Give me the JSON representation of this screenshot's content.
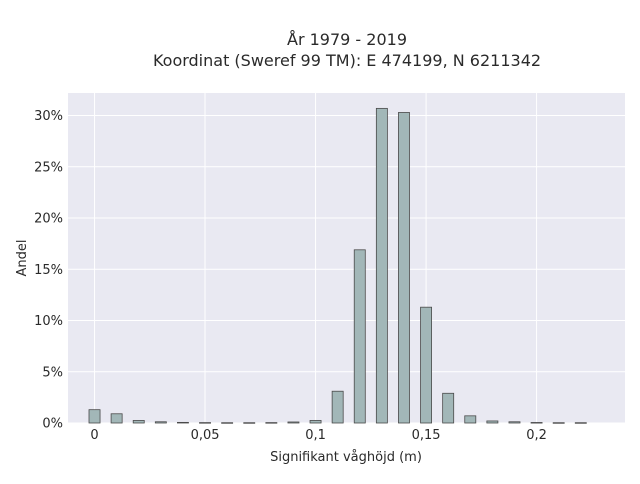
{
  "chart_data": {
    "type": "bar",
    "title_line1": "År 1979 - 2019",
    "title_line2": "Koordinat (Sweref 99 TM): E 474199, N 6211342",
    "xlabel": "Signifikant våghöjd (m)",
    "ylabel": "Andel",
    "x_ticks": [
      {
        "value": 0,
        "label": "0"
      },
      {
        "value": 0.05,
        "label": "0,05"
      },
      {
        "value": 0.1,
        "label": "0,1"
      },
      {
        "value": 0.15,
        "label": "0,15"
      },
      {
        "value": 0.2,
        "label": "0,2"
      }
    ],
    "y_ticks": [
      {
        "value": 0,
        "label": "0%"
      },
      {
        "value": 5,
        "label": "5%"
      },
      {
        "value": 10,
        "label": "10%"
      },
      {
        "value": 15,
        "label": "15%"
      },
      {
        "value": 20,
        "label": "20%"
      },
      {
        "value": 25,
        "label": "25%"
      },
      {
        "value": 30,
        "label": "30%"
      }
    ],
    "xlim": [
      -0.012,
      0.24
    ],
    "ylim": [
      0,
      32.2
    ],
    "grid": true,
    "bar_color": "#a2b7b8",
    "bar_stroke": "#4a4a4a",
    "plot_bg": "#e9e9f2",
    "x": [
      0,
      0.01,
      0.02,
      0.03,
      0.04,
      0.05,
      0.06,
      0.07,
      0.08,
      0.09,
      0.1,
      0.11,
      0.12,
      0.13,
      0.14,
      0.15,
      0.16,
      0.17,
      0.18,
      0.19,
      0.2,
      0.21,
      0.22
    ],
    "values": [
      1.3,
      0.9,
      0.25,
      0.12,
      0.06,
      0.04,
      0.03,
      0.03,
      0.04,
      0.1,
      0.25,
      3.1,
      16.9,
      30.7,
      30.3,
      11.3,
      2.9,
      0.7,
      0.2,
      0.12,
      0.05,
      0.03,
      0.03
    ]
  }
}
